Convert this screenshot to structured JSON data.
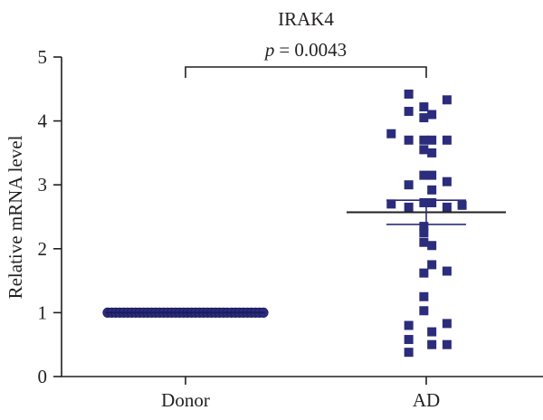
{
  "chart_data": {
    "type": "scatter",
    "title": "IRAK4",
    "annotation": {
      "label": "p",
      "value": "= 0.0043"
    },
    "xlabel": "",
    "ylabel": "Relative mRNA level",
    "categories": [
      "Donor",
      "AD"
    ],
    "ylim": [
      0,
      5
    ],
    "yticks": [
      0,
      1,
      2,
      3,
      4,
      5
    ],
    "grid": false,
    "series": [
      {
        "category": "Donor",
        "marker": "circle",
        "color": "#2b2c7c",
        "values": [
          1,
          1,
          1,
          1,
          1,
          1,
          1,
          1,
          1,
          1,
          1,
          1,
          1,
          1,
          1,
          1,
          1,
          1,
          1,
          1,
          1,
          1,
          1,
          1,
          1,
          1,
          1,
          1,
          1,
          1,
          1,
          1,
          1,
          1,
          1,
          1,
          1,
          1,
          1,
          1
        ]
      },
      {
        "category": "AD",
        "marker": "square",
        "color": "#2b2c7c",
        "points": [
          {
            "offset": -0.44,
            "value": 4.42
          },
          {
            "offset": 0.52,
            "value": 4.33
          },
          {
            "offset": -0.06,
            "value": 4.22
          },
          {
            "offset": -0.44,
            "value": 4.15
          },
          {
            "offset": -0.06,
            "value": 4.05
          },
          {
            "offset": 0.14,
            "value": 4.1
          },
          {
            "offset": -0.88,
            "value": 3.8
          },
          {
            "offset": -0.44,
            "value": 3.7
          },
          {
            "offset": -0.06,
            "value": 3.7
          },
          {
            "offset": 0.14,
            "value": 3.7
          },
          {
            "offset": 0.52,
            "value": 3.7
          },
          {
            "offset": -0.06,
            "value": 3.55
          },
          {
            "offset": 0.14,
            "value": 3.5
          },
          {
            "offset": -0.06,
            "value": 3.15
          },
          {
            "offset": 0.14,
            "value": 3.15
          },
          {
            "offset": -0.44,
            "value": 3.0
          },
          {
            "offset": 0.52,
            "value": 3.05
          },
          {
            "offset": 0.14,
            "value": 2.92
          },
          {
            "offset": -0.88,
            "value": 2.7
          },
          {
            "offset": -0.06,
            "value": 2.72
          },
          {
            "offset": 0.14,
            "value": 2.72
          },
          {
            "offset": -0.44,
            "value": 2.65
          },
          {
            "offset": 0.52,
            "value": 2.65
          },
          {
            "offset": 0.9,
            "value": 2.68
          },
          {
            "offset": -0.06,
            "value": 2.35
          },
          {
            "offset": -0.06,
            "value": 2.25
          },
          {
            "offset": -0.06,
            "value": 2.1
          },
          {
            "offset": 0.14,
            "value": 2.05
          },
          {
            "offset": 0.14,
            "value": 1.75
          },
          {
            "offset": -0.06,
            "value": 1.62
          },
          {
            "offset": 0.52,
            "value": 1.65
          },
          {
            "offset": -0.06,
            "value": 1.25
          },
          {
            "offset": -0.06,
            "value": 1.03
          },
          {
            "offset": -0.44,
            "value": 0.8
          },
          {
            "offset": 0.52,
            "value": 0.83
          },
          {
            "offset": 0.14,
            "value": 0.7
          },
          {
            "offset": -0.44,
            "value": 0.58
          },
          {
            "offset": 0.14,
            "value": 0.5
          },
          {
            "offset": 0.52,
            "value": 0.5
          },
          {
            "offset": -0.44,
            "value": 0.38
          }
        ],
        "mean": 2.57,
        "sem": [
          2.38,
          2.76
        ]
      }
    ]
  }
}
